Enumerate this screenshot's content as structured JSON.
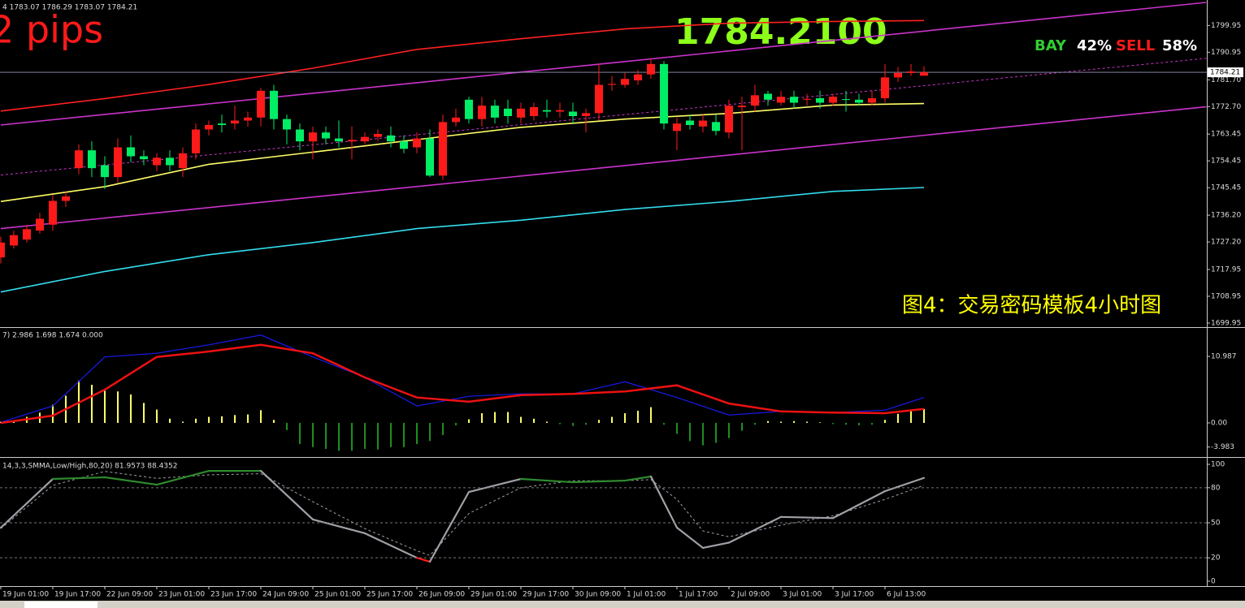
{
  "chart_data": [
    {
      "type": "candlestick",
      "header": "4 1783.07 1786.29 1783.07 1784.21",
      "annotations": {
        "pips": "2 pips",
        "price": "1784.2100",
        "bay": "BAY",
        "bay_pct": "42%",
        "sell": "SELL",
        "sell_pct": "58%",
        "caption": "图4：交易密码模板4小时图"
      },
      "categories": [
        "19 Jun 01:00",
        null,
        null,
        null,
        "19 Jun 17:00",
        null,
        null,
        null,
        "22 Jun 09:00",
        null,
        null,
        null,
        "23 Jun 01:00",
        null,
        null,
        null,
        "23 Jun 17:00",
        null,
        null,
        null,
        "24 Jun 09:00",
        null,
        null,
        null,
        "25 Jun 01:00",
        null,
        null,
        null,
        "25 Jun 17:00",
        null,
        null,
        null,
        "26 Jun 09:00",
        null,
        null,
        null,
        "29 Jun 01:00",
        null,
        null,
        null,
        "29 Jun 17:00",
        null,
        null,
        null,
        "30 Jun 09:00",
        null,
        null,
        null,
        "1 Jul 01:00",
        null,
        null,
        null,
        "1 Jul 17:00",
        null,
        null,
        null,
        "2 Jul 09:00",
        null,
        null,
        null,
        "3 Jul 01:00",
        null,
        null,
        null,
        "3 Jul 17:00",
        null,
        null,
        null,
        "6 Jul 13:00",
        null,
        null,
        null
      ],
      "open": [
        1722,
        1726,
        1728,
        1731,
        1733,
        1741,
        1752,
        1758,
        1753,
        1749,
        1759,
        1756,
        1753,
        1755.5,
        1752,
        1757,
        1765,
        1767,
        1767,
        1768,
        1769,
        1778,
        1768.5,
        1765,
        1761,
        1764,
        1762,
        1761,
        1761,
        1762.5,
        1763,
        1761,
        1759,
        1762,
        1749.5,
        1767.5,
        1775,
        1768.5,
        1773,
        1772,
        1769,
        1769.5,
        1771.5,
        1771,
        1771,
        1769.5,
        1770.5,
        1780,
        1780,
        1781.5,
        1783.5,
        1787,
        1764.5,
        1768,
        1766,
        1767.5,
        1764,
        1772.5,
        1773,
        1777,
        1774,
        1776,
        1775,
        1775.5,
        1774,
        1775.2,
        1775,
        1774,
        1775.5,
        1782.5,
        1784,
        1783.07
      ],
      "high": [
        1729,
        1731,
        1733,
        1737,
        1743,
        1744,
        1760,
        1761,
        1756,
        1762,
        1763,
        1758,
        1757,
        1758,
        1759,
        1767,
        1768,
        1770,
        1773,
        1771,
        1779,
        1780,
        1770,
        1767,
        1766,
        1766,
        1768,
        1766,
        1764,
        1765,
        1766,
        1763,
        1764,
        1765,
        1770,
        1772,
        1776,
        1776,
        1775,
        1775,
        1774,
        1774,
        1775,
        1774,
        1774,
        1772,
        1787,
        1783,
        1784,
        1785,
        1789,
        1788,
        1769,
        1770,
        1770,
        1770,
        1775,
        1776,
        1780,
        1778,
        1778,
        1778,
        1777,
        1778,
        1777,
        1778,
        1777,
        1778,
        1787,
        1786,
        1787,
        1786.29
      ],
      "low": [
        1720,
        1725,
        1727,
        1730,
        1731,
        1739,
        1750,
        1749,
        1745,
        1747,
        1754,
        1753,
        1751,
        1751,
        1749,
        1755,
        1763,
        1764,
        1765,
        1766,
        1766,
        1765,
        1760,
        1758,
        1755,
        1760,
        1759,
        1755,
        1760,
        1761,
        1759,
        1757,
        1757,
        1749,
        1748,
        1766,
        1767,
        1766,
        1767,
        1767,
        1767,
        1768,
        1769,
        1769,
        1767,
        1764,
        1768,
        1778,
        1779,
        1780,
        1782,
        1765,
        1758,
        1765,
        1764,
        1763,
        1762,
        1758,
        1771,
        1773,
        1773,
        1772,
        1773,
        1772,
        1773,
        1771,
        1773,
        1773,
        1774,
        1781,
        1783,
        1783.07
      ],
      "close": [
        1727,
        1729.5,
        1731.5,
        1735,
        1741,
        1742.5,
        1758,
        1752,
        1749,
        1759,
        1756,
        1755,
        1755.5,
        1753,
        1757,
        1765,
        1766.5,
        1766.5,
        1768,
        1769,
        1778,
        1768.5,
        1765,
        1761,
        1764,
        1762,
        1761,
        1761.5,
        1762.5,
        1763.5,
        1761,
        1758.5,
        1762,
        1749.5,
        1767.5,
        1769,
        1768.5,
        1773,
        1769,
        1769.5,
        1772,
        1772.5,
        1771,
        1771.5,
        1769.5,
        1770.5,
        1780,
        1780.3,
        1782,
        1783.5,
        1787,
        1767,
        1767,
        1766.5,
        1768,
        1764.5,
        1773,
        1773,
        1776.5,
        1775,
        1776,
        1774,
        1775.3,
        1774,
        1776,
        1775,
        1774,
        1775.5,
        1782.5,
        1784,
        1784.5,
        1784.21
      ],
      "up_color": "#ff1a1a",
      "down_color": "#00ee66",
      "overlays": [
        {
          "color": "#ff2020",
          "x": [
            0,
            8,
            16,
            24,
            32,
            40,
            48,
            56,
            64,
            71
          ],
          "values": [
            1771.2,
            1775.4,
            1780.1,
            1785.6,
            1791.9,
            1795.5,
            1798.8,
            1800.7,
            1801.3,
            1801.6
          ]
        },
        {
          "color": "#ffff66",
          "x": [
            0,
            8,
            16,
            24,
            32,
            40,
            48,
            56,
            64,
            71
          ],
          "values": [
            1740.8,
            1745.8,
            1753.3,
            1757.4,
            1761.6,
            1765.7,
            1768.5,
            1770.4,
            1773.2,
            1773.7
          ]
        },
        {
          "color": "#33ddee",
          "x": [
            0,
            8,
            16,
            24,
            32,
            40,
            48,
            56,
            64,
            71
          ],
          "values": [
            1710.4,
            1717.3,
            1722.9,
            1727.0,
            1731.7,
            1734.5,
            1738.1,
            1740.8,
            1744.2,
            1745.5
          ]
        },
        {
          "color": "#cc33cc",
          "x": [
            0,
            92.7
          ],
          "values": [
            1766.5,
            1807.7
          ]
        },
        {
          "color": "#cc33cc",
          "x": [
            0,
            92.7
          ],
          "values": [
            1749.7,
            1788.9
          ],
          "dashed": true
        },
        {
          "color": "#cc33cc",
          "x": [
            0,
            92.7
          ],
          "values": [
            1731.7,
            1772.6
          ]
        }
      ],
      "last_price": 1784.21,
      "xlim": [
        -0.06,
        92.75
      ],
      "ylim": [
        1698.85,
        1808.51
      ],
      "yticks": [
        1799.95,
        1790.95,
        {
          "value": 1781.7,
          "label": "1781.70"
        },
        {
          "value": 1772.7,
          "label": "1772.70"
        },
        1763.45,
        1754.45,
        1745.45,
        {
          "value": 1736.2,
          "label": "1736.20"
        },
        {
          "value": 1727.2,
          "label": "1727.20"
        },
        1717.95,
        1708.95,
        1699.95
      ]
    },
    {
      "type": "macd",
      "label": "7) 2.986 1.698 1.674 0.000",
      "histogram": [
        0.2,
        0.4,
        1.0,
        1.7,
        3.0,
        4.5,
        7.0,
        6.3,
        5.3,
        5.2,
        4.7,
        3.3,
        2.2,
        0.7,
        0.2,
        0.7,
        1.0,
        1.1,
        1.3,
        1.4,
        2.1,
        0.5,
        -1.2,
        -3.5,
        -4.0,
        -4.3,
        -4.6,
        -4.6,
        -4.3,
        -4.4,
        -4.0,
        -4.0,
        -3.5,
        -3.0,
        -2.0,
        -0.4,
        0.6,
        1.6,
        1.8,
        1.8,
        1.0,
        0.7,
        0.2,
        -0.2,
        -0.5,
        -0.3,
        0.5,
        1.0,
        1.6,
        2.0,
        2.6,
        -0.3,
        -1.8,
        -3.0,
        -3.7,
        -3.3,
        -2.5,
        -1.3,
        -0.3,
        0.3,
        0.2,
        0.3,
        0.2,
        0.1,
        -0.2,
        -0.3,
        -0.4,
        -0.3,
        0.5,
        1.5,
        2.0,
        2.3
      ],
      "pos_color": "#ffff66",
      "neg_color": "#1f8f1f",
      "series": [
        {
          "color": "#1a1aee",
          "x": [
            0,
            4,
            8,
            12,
            16,
            20,
            24,
            28,
            32,
            36,
            40,
            44,
            48,
            52,
            56,
            60,
            64,
            68,
            71
          ],
          "values": [
            0.1,
            2.8,
            10.9,
            11.5,
            12.9,
            14.5,
            10.9,
            7.5,
            2.8,
            4.4,
            4.8,
            4.8,
            6.8,
            4.2,
            1.3,
            1.9,
            1.7,
            2.1,
            4.2
          ]
        },
        {
          "color": "#ee1111",
          "x": [
            0,
            4,
            8,
            12,
            16,
            20,
            24,
            28,
            32,
            36,
            40,
            44,
            48,
            52,
            56,
            60,
            64,
            68,
            71
          ],
          "values": [
            0,
            1.2,
            5.5,
            10.9,
            11.8,
            12.9,
            11.5,
            7.5,
            4.2,
            3.5,
            4.6,
            4.8,
            5.2,
            6.2,
            3.2,
            1.9,
            1.7,
            1.6,
            2.3
          ]
        }
      ],
      "ylim": [
        -5.5,
        15.55
      ],
      "yticks": [
        10.987,
        {
          "value": 0,
          "label": "0.00"
        },
        -3.983
      ]
    },
    {
      "type": "stochastic",
      "label": "14,3,3,SMMA,Low/High,80,20) 81.9573 88.4352",
      "main": {
        "color": "#a0a0a8",
        "high_color": "#2e8b2e",
        "low_color": "#ff1a1a",
        "x": [
          0,
          4,
          8,
          12,
          16,
          20,
          24,
          28,
          32,
          33,
          36,
          40,
          44,
          48,
          50,
          52,
          54,
          56,
          60,
          64,
          68,
          71
        ],
        "values": [
          45.8,
          87.5,
          88.9,
          82.6,
          94.4,
          94.4,
          52.8,
          41.0,
          20.0,
          16.7,
          76.4,
          87.5,
          84.7,
          86.1,
          89.6,
          45.8,
          28.5,
          33.0,
          55.0,
          54.0,
          77.0,
          88.4
        ]
      },
      "signal": {
        "color": "#a0a0a8",
        "x": [
          0,
          4,
          8,
          12,
          16,
          20,
          24,
          28,
          32,
          33,
          36,
          40,
          44,
          48,
          50,
          52,
          54,
          56,
          60,
          64,
          68,
          71
        ],
        "values": [
          45,
          82,
          94,
          88,
          91,
          92,
          68,
          45,
          26,
          22,
          58,
          80,
          86,
          86,
          87,
          70,
          43,
          38,
          48,
          56,
          70,
          82.0
        ]
      },
      "ylim": [
        -4.2,
        104.2
      ],
      "yticks": [
        100,
        80,
        50,
        20,
        0
      ]
    }
  ]
}
